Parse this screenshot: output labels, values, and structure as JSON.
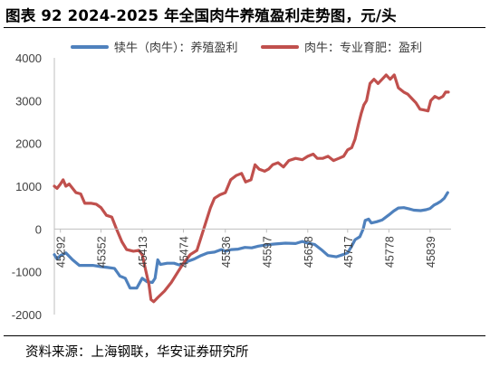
{
  "title": "图表 92 2024-2025 年全国肉牛养殖盈利走势图，元/头",
  "source": "资料来源：上海钢联，华安证券研究所",
  "chart_data": {
    "type": "line",
    "title": "图表 92 2024-2025 年全国肉牛养殖盈利走势图，元/头",
    "xlabel": "",
    "ylabel": "",
    "ylim": [
      -2000,
      4000
    ],
    "yticks": [
      -2000,
      -1000,
      0,
      1000,
      2000,
      3000,
      4000
    ],
    "xlim": [
      45283,
      45870
    ],
    "xticks": [
      45292,
      45352,
      45413,
      45474,
      45536,
      45597,
      45658,
      45717,
      45778,
      45839
    ],
    "grid": false,
    "legend_position": "top",
    "series": [
      {
        "name": "犊牛（肉牛）：养殖盈利",
        "color": "#4F81BD",
        "points": [
          [
            45283,
            -600
          ],
          [
            45287,
            -700
          ],
          [
            45292,
            -620
          ],
          [
            45300,
            -560
          ],
          [
            45310,
            -720
          ],
          [
            45320,
            -850
          ],
          [
            45330,
            -850
          ],
          [
            45340,
            -850
          ],
          [
            45348,
            -870
          ],
          [
            45352,
            -880
          ],
          [
            45362,
            -900
          ],
          [
            45372,
            -920
          ],
          [
            45380,
            -1100
          ],
          [
            45388,
            -1150
          ],
          [
            45395,
            -1380
          ],
          [
            45405,
            -1380
          ],
          [
            45413,
            -1150
          ],
          [
            45420,
            -1230
          ],
          [
            45428,
            -1250
          ],
          [
            45432,
            -1150
          ],
          [
            45436,
            -720
          ],
          [
            45440,
            -830
          ],
          [
            45450,
            -800
          ],
          [
            45460,
            -800
          ],
          [
            45468,
            -840
          ],
          [
            45474,
            -820
          ],
          [
            45480,
            -760
          ],
          [
            45490,
            -700
          ],
          [
            45500,
            -620
          ],
          [
            45510,
            -560
          ],
          [
            45520,
            -540
          ],
          [
            45530,
            -480
          ],
          [
            45536,
            -520
          ],
          [
            45545,
            -480
          ],
          [
            45555,
            -470
          ],
          [
            45565,
            -430
          ],
          [
            45575,
            -440
          ],
          [
            45585,
            -400
          ],
          [
            45597,
            -370
          ],
          [
            45610,
            -350
          ],
          [
            45625,
            -330
          ],
          [
            45640,
            -340
          ],
          [
            45650,
            -290
          ],
          [
            45658,
            -330
          ],
          [
            45668,
            -360
          ],
          [
            45678,
            -480
          ],
          [
            45688,
            -620
          ],
          [
            45700,
            -650
          ],
          [
            45710,
            -600
          ],
          [
            45717,
            -560
          ],
          [
            45723,
            -400
          ],
          [
            45728,
            -250
          ],
          [
            45735,
            -180
          ],
          [
            45740,
            0
          ],
          [
            45743,
            200
          ],
          [
            45748,
            230
          ],
          [
            45752,
            140
          ],
          [
            45760,
            170
          ],
          [
            45768,
            210
          ],
          [
            45778,
            330
          ],
          [
            45785,
            420
          ],
          [
            45792,
            490
          ],
          [
            45800,
            500
          ],
          [
            45808,
            470
          ],
          [
            45815,
            440
          ],
          [
            45825,
            430
          ],
          [
            45833,
            450
          ],
          [
            45839,
            480
          ],
          [
            45845,
            560
          ],
          [
            45850,
            600
          ],
          [
            45855,
            650
          ],
          [
            45860,
            720
          ],
          [
            45865,
            850
          ]
        ]
      },
      {
        "name": "肉牛：专业育肥：盈利",
        "color": "#C0504D",
        "points": [
          [
            45283,
            1000
          ],
          [
            45287,
            950
          ],
          [
            45292,
            1050
          ],
          [
            45296,
            1150
          ],
          [
            45300,
            1000
          ],
          [
            45305,
            1050
          ],
          [
            45315,
            850
          ],
          [
            45322,
            820
          ],
          [
            45328,
            600
          ],
          [
            45338,
            600
          ],
          [
            45345,
            580
          ],
          [
            45352,
            500
          ],
          [
            45360,
            320
          ],
          [
            45368,
            280
          ],
          [
            45375,
            0
          ],
          [
            45383,
            -300
          ],
          [
            45390,
            -480
          ],
          [
            45400,
            -520
          ],
          [
            45408,
            -500
          ],
          [
            45413,
            -600
          ],
          [
            45418,
            -950
          ],
          [
            45423,
            -1300
          ],
          [
            45426,
            -1650
          ],
          [
            45430,
            -1700
          ],
          [
            45436,
            -1600
          ],
          [
            45446,
            -1450
          ],
          [
            45456,
            -1250
          ],
          [
            45466,
            -1000
          ],
          [
            45474,
            -800
          ],
          [
            45484,
            -600
          ],
          [
            45494,
            -500
          ],
          [
            45502,
            -100
          ],
          [
            45508,
            200
          ],
          [
            45514,
            500
          ],
          [
            45520,
            720
          ],
          [
            45528,
            800
          ],
          [
            45536,
            850
          ],
          [
            45544,
            1150
          ],
          [
            45552,
            1250
          ],
          [
            45560,
            1300
          ],
          [
            45566,
            1100
          ],
          [
            45574,
            1150
          ],
          [
            45580,
            1500
          ],
          [
            45586,
            1400
          ],
          [
            45594,
            1350
          ],
          [
            45600,
            1400
          ],
          [
            45606,
            1500
          ],
          [
            45614,
            1550
          ],
          [
            45622,
            1450
          ],
          [
            45630,
            1600
          ],
          [
            45640,
            1650
          ],
          [
            45650,
            1620
          ],
          [
            45658,
            1700
          ],
          [
            45666,
            1750
          ],
          [
            45672,
            1650
          ],
          [
            45680,
            1650
          ],
          [
            45688,
            1700
          ],
          [
            45696,
            1600
          ],
          [
            45704,
            1650
          ],
          [
            45711,
            1700
          ],
          [
            45717,
            1850
          ],
          [
            45723,
            1900
          ],
          [
            45728,
            2100
          ],
          [
            45733,
            2450
          ],
          [
            45737,
            2700
          ],
          [
            45741,
            2900
          ],
          [
            45745,
            3000
          ],
          [
            45750,
            3400
          ],
          [
            45756,
            3500
          ],
          [
            45762,
            3400
          ],
          [
            45768,
            3500
          ],
          [
            45774,
            3600
          ],
          [
            45780,
            3500
          ],
          [
            45786,
            3600
          ],
          [
            45792,
            3300
          ],
          [
            45800,
            3200
          ],
          [
            45806,
            3150
          ],
          [
            45812,
            3050
          ],
          [
            45818,
            2950
          ],
          [
            45824,
            2800
          ],
          [
            45830,
            2780
          ],
          [
            45836,
            2760
          ],
          [
            45840,
            3000
          ],
          [
            45846,
            3100
          ],
          [
            45852,
            3050
          ],
          [
            45858,
            3100
          ],
          [
            45862,
            3200
          ],
          [
            45866,
            3200
          ]
        ]
      }
    ]
  }
}
